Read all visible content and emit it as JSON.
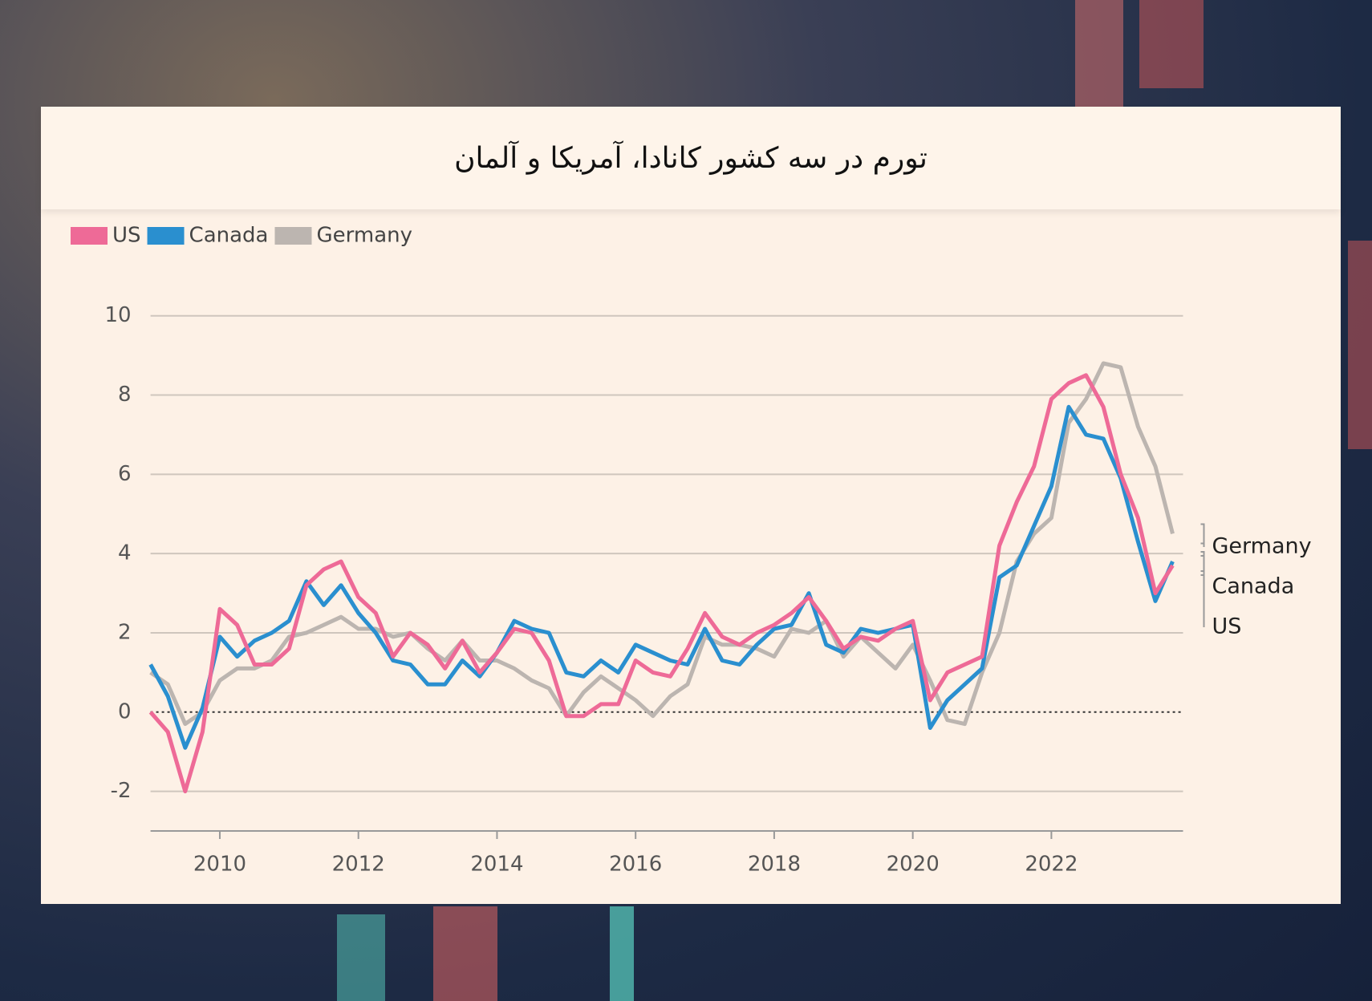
{
  "chart_data": {
    "type": "line",
    "title": "تورم در سه کشور کانادا، آمریکا و آلمان",
    "x": [
      2009.0,
      2009.25,
      2009.5,
      2009.75,
      2010.0,
      2010.25,
      2010.5,
      2010.75,
      2011.0,
      2011.25,
      2011.5,
      2011.75,
      2012.0,
      2012.25,
      2012.5,
      2012.75,
      2013.0,
      2013.25,
      2013.5,
      2013.75,
      2014.0,
      2014.25,
      2014.5,
      2014.75,
      2015.0,
      2015.25,
      2015.5,
      2015.75,
      2016.0,
      2016.25,
      2016.5,
      2016.75,
      2017.0,
      2017.25,
      2017.5,
      2017.75,
      2018.0,
      2018.25,
      2018.5,
      2018.75,
      2019.0,
      2019.25,
      2019.5,
      2019.75,
      2020.0,
      2020.25,
      2020.5,
      2020.75,
      2021.0,
      2021.25,
      2021.5,
      2021.75,
      2022.0,
      2022.25,
      2022.5,
      2022.75,
      2023.0,
      2023.25,
      2023.5,
      2023.75
    ],
    "series": [
      {
        "name": "US",
        "color": "#ee6a97",
        "values": [
          0.0,
          -0.5,
          -2.0,
          -0.5,
          2.6,
          2.2,
          1.2,
          1.2,
          1.6,
          3.2,
          3.6,
          3.8,
          2.9,
          2.5,
          1.4,
          2.0,
          1.7,
          1.1,
          1.8,
          1.0,
          1.5,
          2.1,
          2.0,
          1.3,
          -0.1,
          -0.1,
          0.2,
          0.2,
          1.3,
          1.0,
          0.9,
          1.6,
          2.5,
          1.9,
          1.7,
          2.0,
          2.2,
          2.5,
          2.9,
          2.3,
          1.6,
          1.9,
          1.8,
          2.1,
          2.3,
          0.3,
          1.0,
          1.2,
          1.4,
          4.2,
          5.3,
          6.2,
          7.9,
          8.3,
          8.5,
          7.7,
          6.0,
          4.9,
          3.0,
          3.7
        ]
      },
      {
        "name": "Canada",
        "color": "#2a8fcf",
        "values": [
          1.2,
          0.4,
          -0.9,
          0.1,
          1.9,
          1.4,
          1.8,
          2.0,
          2.3,
          3.3,
          2.7,
          3.2,
          2.5,
          2.0,
          1.3,
          1.2,
          0.7,
          0.7,
          1.3,
          0.9,
          1.5,
          2.3,
          2.1,
          2.0,
          1.0,
          0.9,
          1.3,
          1.0,
          1.7,
          1.5,
          1.3,
          1.2,
          2.1,
          1.3,
          1.2,
          1.7,
          2.1,
          2.2,
          3.0,
          1.7,
          1.5,
          2.1,
          2.0,
          2.1,
          2.2,
          -0.4,
          0.3,
          0.7,
          1.1,
          3.4,
          3.7,
          4.7,
          5.7,
          7.7,
          7.0,
          6.9,
          5.9,
          4.3,
          2.8,
          3.8
        ]
      },
      {
        "name": "Germany",
        "color": "#bcb5b0",
        "values": [
          1.0,
          0.7,
          -0.3,
          0.0,
          0.8,
          1.1,
          1.1,
          1.3,
          1.9,
          2.0,
          2.2,
          2.4,
          2.1,
          2.1,
          1.9,
          2.0,
          1.6,
          1.3,
          1.8,
          1.3,
          1.3,
          1.1,
          0.8,
          0.6,
          -0.1,
          0.5,
          0.9,
          0.6,
          0.3,
          -0.1,
          0.4,
          0.7,
          1.9,
          1.7,
          1.7,
          1.6,
          1.4,
          2.1,
          2.0,
          2.3,
          1.4,
          1.9,
          1.5,
          1.1,
          1.7,
          0.8,
          -0.2,
          -0.3,
          1.0,
          2.0,
          3.8,
          4.5,
          4.9,
          7.3,
          7.9,
          8.8,
          8.7,
          7.2,
          6.2,
          4.5
        ]
      }
    ],
    "xlim": [
      2009.0,
      2023.9
    ],
    "xticks": [
      2010,
      2012,
      2014,
      2016,
      2018,
      2020,
      2022
    ],
    "ylim": [
      -3,
      10
    ],
    "yticks": [
      -2,
      0,
      2,
      4,
      6,
      8,
      10
    ],
    "grid": true,
    "legend": "top-left",
    "end_labels": true
  }
}
